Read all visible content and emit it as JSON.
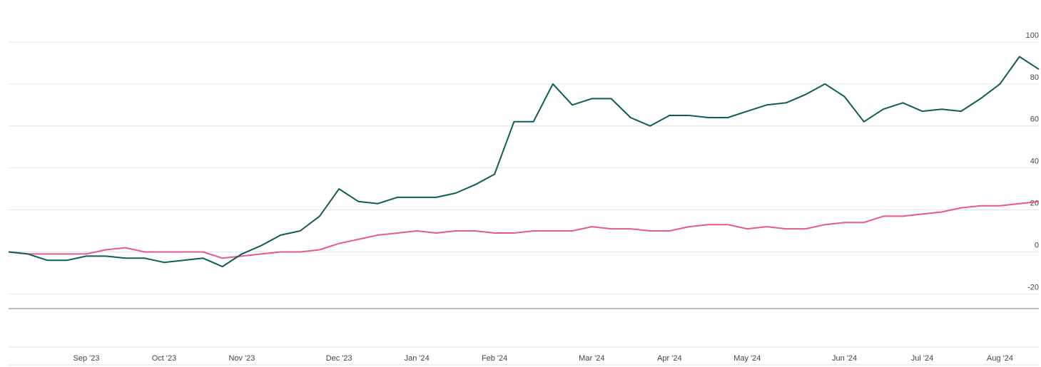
{
  "chart_data": {
    "type": "line",
    "categories": [
      null,
      null,
      null,
      null,
      "Sep '23",
      null,
      null,
      null,
      "Oct '23",
      null,
      null,
      null,
      "Nov '23",
      null,
      null,
      null,
      null,
      "Dec '23",
      null,
      null,
      null,
      "Jan '24",
      null,
      null,
      null,
      "Feb '24",
      null,
      null,
      null,
      null,
      "Mar '24",
      null,
      null,
      null,
      "Apr '24",
      null,
      null,
      null,
      "May '24",
      null,
      null,
      null,
      null,
      "Jun '24",
      null,
      null,
      null,
      "Jul '24",
      null,
      null,
      null,
      "Aug '24",
      null,
      null
    ],
    "series": [
      {
        "color": "#0e5c58",
        "values": [
          0,
          -1,
          -4,
          -4,
          -2,
          -2,
          -3,
          -3,
          -5,
          -4,
          -3,
          -7,
          -1,
          3,
          8,
          10,
          17,
          30,
          24,
          23,
          26,
          26,
          26,
          28,
          32,
          37,
          62,
          62,
          80,
          70,
          73,
          73,
          64,
          60,
          65,
          65,
          64,
          64,
          67,
          70,
          71,
          75,
          80,
          74,
          62,
          68,
          71,
          67,
          68,
          67,
          73,
          80,
          93,
          87
        ]
      },
      {
        "color": "#e8578f",
        "values": [
          0,
          -1,
          -1,
          -1,
          -1,
          1,
          2,
          0,
          0,
          0,
          0,
          -3,
          -2,
          -1,
          0,
          0,
          1,
          4,
          6,
          8,
          9,
          10,
          9,
          10,
          10,
          9,
          9,
          10,
          10,
          10,
          12,
          11,
          11,
          10,
          10,
          12,
          13,
          13,
          11,
          12,
          11,
          11,
          13,
          14,
          14,
          17,
          17,
          18,
          19,
          21,
          22,
          22,
          23,
          24
        ]
      }
    ],
    "ylim": [
      -27,
      120
    ],
    "yticks": [
      -20,
      0,
      20,
      40,
      60,
      80,
      100
    ],
    "grid": true
  }
}
